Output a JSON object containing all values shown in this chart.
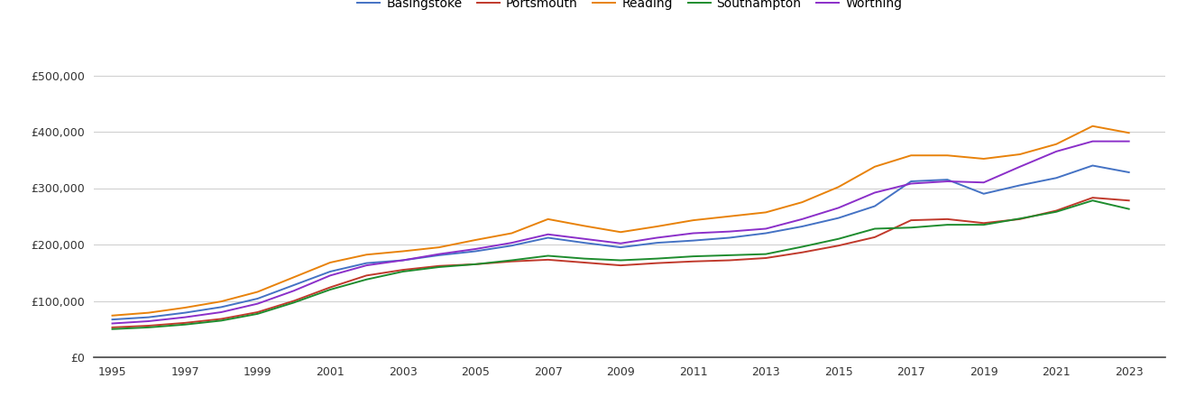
{
  "years": [
    1995,
    1996,
    1997,
    1998,
    1999,
    2000,
    2001,
    2002,
    2003,
    2004,
    2005,
    2006,
    2007,
    2008,
    2009,
    2010,
    2011,
    2012,
    2013,
    2014,
    2015,
    2016,
    2017,
    2018,
    2019,
    2020,
    2021,
    2022,
    2023
  ],
  "Basingstoke": [
    67000,
    71000,
    79000,
    89000,
    104000,
    128000,
    152000,
    167000,
    172000,
    181000,
    188000,
    198000,
    212000,
    203000,
    195000,
    203000,
    207000,
    212000,
    220000,
    232000,
    247000,
    268000,
    312000,
    315000,
    290000,
    305000,
    318000,
    340000,
    328000
  ],
  "Portsmouth": [
    53000,
    56000,
    61000,
    68000,
    80000,
    100000,
    124000,
    145000,
    155000,
    162000,
    165000,
    170000,
    173000,
    168000,
    163000,
    167000,
    170000,
    172000,
    176000,
    186000,
    198000,
    213000,
    243000,
    245000,
    238000,
    245000,
    260000,
    283000,
    278000
  ],
  "Reading": [
    74000,
    79000,
    88000,
    99000,
    116000,
    142000,
    168000,
    182000,
    188000,
    195000,
    208000,
    220000,
    245000,
    233000,
    222000,
    232000,
    243000,
    250000,
    257000,
    275000,
    302000,
    338000,
    358000,
    358000,
    352000,
    360000,
    378000,
    410000,
    398000
  ],
  "Southampton": [
    50000,
    53000,
    58000,
    65000,
    77000,
    97000,
    120000,
    138000,
    152000,
    160000,
    165000,
    172000,
    180000,
    175000,
    172000,
    175000,
    179000,
    181000,
    183000,
    196000,
    210000,
    228000,
    230000,
    235000,
    235000,
    246000,
    258000,
    278000,
    263000
  ],
  "Worthing": [
    60000,
    64000,
    71000,
    80000,
    95000,
    118000,
    145000,
    163000,
    172000,
    183000,
    192000,
    203000,
    218000,
    210000,
    202000,
    212000,
    220000,
    223000,
    228000,
    245000,
    265000,
    292000,
    308000,
    312000,
    310000,
    338000,
    365000,
    383000,
    383000
  ],
  "colors": {
    "Basingstoke": "#4472c4",
    "Portsmouth": "#c0392b",
    "Reading": "#e8820a",
    "Southampton": "#1e8c2e",
    "Worthing": "#8b2fc9"
  },
  "ylim": [
    0,
    540000
  ],
  "yticks": [
    0,
    100000,
    200000,
    300000,
    400000,
    500000
  ],
  "xticks": [
    1995,
    1997,
    1999,
    2001,
    2003,
    2005,
    2007,
    2009,
    2011,
    2013,
    2015,
    2017,
    2019,
    2021,
    2023
  ],
  "xlim": [
    1994.5,
    2024.0
  ],
  "background_color": "#ffffff",
  "grid_color": "#d0d0d0",
  "cities": [
    "Basingstoke",
    "Portsmouth",
    "Reading",
    "Southampton",
    "Worthing"
  ]
}
